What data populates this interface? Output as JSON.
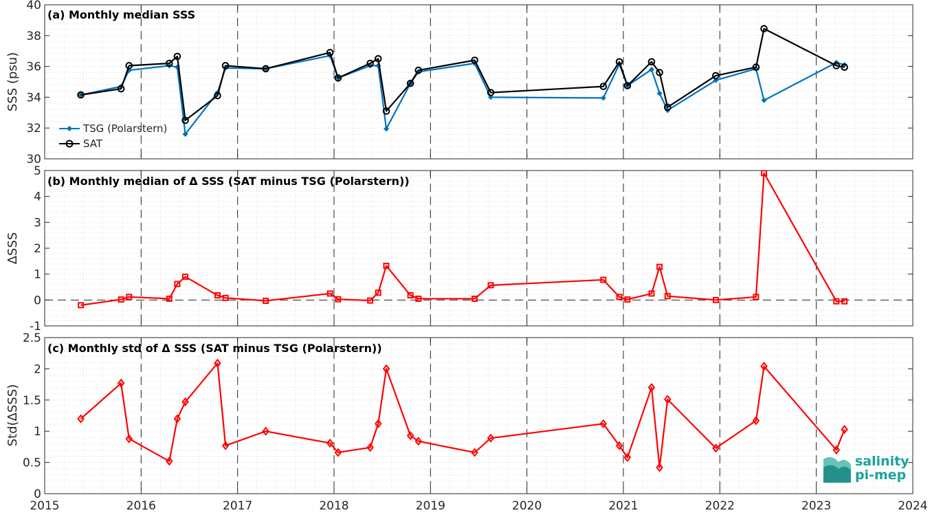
{
  "colors": {
    "tsg": "#0072BD",
    "sat": "#000000",
    "delta": "#FF0000",
    "grid": "#d9d9d9",
    "axis": "#262626",
    "logo": "#1aa39a"
  },
  "logo": {
    "line1": "salinity",
    "line2": "pi-mep"
  },
  "chart_data": [
    {
      "type": "line",
      "title": "(a) Monthly median SSS",
      "xlabel": "",
      "ylabel": "SSS (psu)",
      "xlim": [
        2015,
        2024
      ],
      "ylim": [
        30,
        40
      ],
      "yticks": [
        30,
        32,
        34,
        36,
        38,
        40
      ],
      "xticks": [
        "2015",
        "2016",
        "2017",
        "2018",
        "2019",
        "2020",
        "2021",
        "2022",
        "2023",
        "2024"
      ],
      "grid": true,
      "year_dashed_lines": true,
      "legend_position": "bottom-left",
      "series": [
        {
          "name": "TSG (Polarstern)",
          "marker": "diamond-filled",
          "x": [
            2015.375,
            2015.792,
            2015.875,
            2016.292,
            2016.375,
            2016.458,
            2016.792,
            2016.875,
            2017.292,
            2017.958,
            2018.042,
            2018.375,
            2018.458,
            2018.542,
            2018.792,
            2018.875,
            2019.458,
            2019.625,
            2020.792,
            2020.958,
            2021.042,
            2021.292,
            2021.375,
            2021.458,
            2021.958,
            2022.375,
            2022.458,
            2023.208,
            2023.292
          ],
          "y": [
            34.15,
            34.7,
            35.75,
            36.05,
            35.95,
            31.6,
            34.3,
            35.9,
            35.85,
            36.7,
            35.25,
            36.05,
            36.05,
            31.95,
            34.9,
            35.65,
            36.2,
            34.0,
            33.95,
            36.15,
            34.75,
            35.8,
            34.25,
            33.15,
            35.1,
            35.85,
            33.8,
            36.25,
            36.1
          ]
        },
        {
          "name": "SAT",
          "marker": "circle-open",
          "x": [
            2015.375,
            2015.792,
            2015.875,
            2016.292,
            2016.375,
            2016.458,
            2016.792,
            2016.875,
            2017.292,
            2017.958,
            2018.042,
            2018.375,
            2018.458,
            2018.542,
            2018.792,
            2018.875,
            2019.458,
            2019.625,
            2020.792,
            2020.958,
            2021.042,
            2021.292,
            2021.375,
            2021.458,
            2021.958,
            2022.375,
            2022.458,
            2023.208,
            2023.292
          ],
          "y": [
            34.15,
            34.55,
            36.05,
            36.2,
            36.65,
            32.5,
            34.1,
            36.05,
            35.85,
            36.9,
            35.25,
            36.2,
            36.5,
            33.1,
            34.9,
            35.75,
            36.4,
            34.3,
            34.7,
            36.3,
            34.75,
            36.3,
            35.6,
            33.35,
            35.4,
            35.95,
            38.45,
            36.05,
            35.95
          ]
        }
      ]
    },
    {
      "type": "line",
      "title": "(b) Monthly median of Δ SSS (SAT minus TSG (Polarstern))",
      "xlabel": "",
      "ylabel": "ΔSSS",
      "xlim": [
        2015,
        2024
      ],
      "ylim": [
        -1,
        5
      ],
      "yticks": [
        -1,
        0,
        1,
        2,
        3,
        4,
        5
      ],
      "grid": true,
      "year_dashed_lines": true,
      "zero_line": true,
      "series": [
        {
          "name": "",
          "marker": "square-open",
          "x": [
            2015.375,
            2015.792,
            2015.875,
            2016.292,
            2016.375,
            2016.458,
            2016.792,
            2016.875,
            2017.292,
            2017.958,
            2018.042,
            2018.375,
            2018.458,
            2018.542,
            2018.792,
            2018.875,
            2019.458,
            2019.625,
            2020.792,
            2020.958,
            2021.042,
            2021.292,
            2021.375,
            2021.458,
            2021.958,
            2022.375,
            2022.458,
            2023.208,
            2023.292
          ],
          "y": [
            -0.2,
            0.02,
            0.12,
            0.05,
            0.62,
            0.9,
            0.18,
            0.08,
            -0.03,
            0.25,
            0.03,
            -0.02,
            0.28,
            1.32,
            0.18,
            0.05,
            0.05,
            0.57,
            0.78,
            0.12,
            0.02,
            0.25,
            1.28,
            0.15,
            0.0,
            0.12,
            4.9,
            -0.05,
            -0.05
          ]
        }
      ]
    },
    {
      "type": "line",
      "title": "(c) Monthly std of Δ SSS (SAT minus TSG (Polarstern))",
      "xlabel": "",
      "ylabel": "Std(ΔSSS)",
      "xlim": [
        2015,
        2024
      ],
      "ylim": [
        0,
        2.5
      ],
      "yticks": [
        0,
        0.5,
        1,
        1.5,
        2,
        2.5
      ],
      "grid": true,
      "year_dashed_lines": true,
      "series": [
        {
          "name": "",
          "marker": "diamond-open",
          "x": [
            2015.375,
            2015.792,
            2015.875,
            2016.292,
            2016.375,
            2016.458,
            2016.792,
            2016.875,
            2017.292,
            2017.958,
            2018.042,
            2018.375,
            2018.458,
            2018.542,
            2018.792,
            2018.875,
            2019.458,
            2019.625,
            2020.792,
            2020.958,
            2021.042,
            2021.292,
            2021.375,
            2021.458,
            2021.958,
            2022.375,
            2022.458,
            2023.208,
            2023.292
          ],
          "y": [
            1.2,
            1.77,
            0.88,
            0.52,
            1.2,
            1.47,
            2.09,
            0.77,
            1.0,
            0.81,
            0.66,
            0.74,
            1.12,
            2.0,
            0.93,
            0.84,
            0.66,
            0.89,
            1.12,
            0.77,
            0.58,
            1.7,
            0.42,
            1.51,
            0.73,
            1.17,
            2.04,
            0.7,
            1.03
          ]
        }
      ]
    }
  ]
}
